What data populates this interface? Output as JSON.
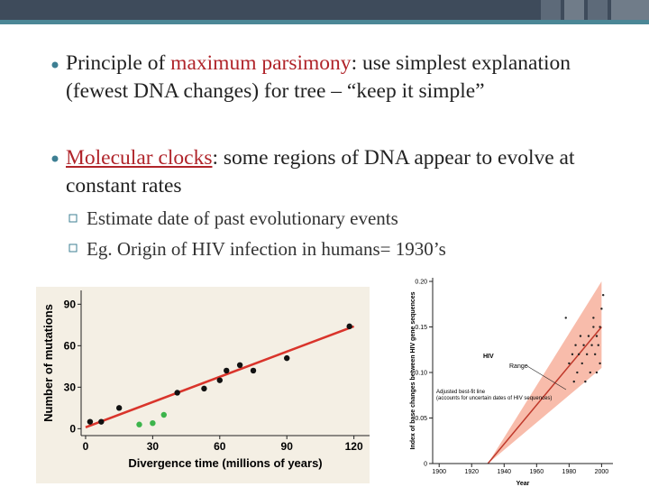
{
  "slide": {
    "bullets": [
      {
        "parts": [
          "Principle of ",
          "maximum parsimony",
          ": use simplest explanation (fewest DNA changes) for tree – “keep it simple”"
        ]
      },
      {
        "parts": [
          "Molecular clocks",
          ": some regions of DNA appear to evolve at constant rates"
        ],
        "sub": [
          "Estimate date of past evolutionary events",
          "Eg. Origin of HIV infection in humans= 1930’s"
        ]
      }
    ]
  },
  "chart_data": [
    {
      "type": "scatter",
      "xlabel": "Divergence time (millions of years)",
      "ylabel": "Number of mutations",
      "xlim": [
        -2,
        127
      ],
      "ylim": [
        -5,
        100
      ],
      "xticks": [
        0,
        30,
        60,
        90,
        120
      ],
      "yticks": [
        0,
        30,
        60,
        90
      ],
      "background": "#f4efe4",
      "series": [
        {
          "type": "line",
          "color": "#d9342b",
          "x": [
            0,
            120
          ],
          "values": [
            1,
            74
          ]
        },
        {
          "type": "scatter",
          "color": "#111111",
          "x": [
            2,
            7,
            15,
            41,
            53,
            60,
            63,
            69,
            75,
            90,
            118
          ],
          "values": [
            5,
            5,
            15,
            26,
            29,
            35,
            42,
            46,
            42,
            51,
            74
          ]
        },
        {
          "type": "scatter",
          "color": "#3cb44b",
          "x": [
            24,
            30,
            35
          ],
          "values": [
            3,
            4,
            10
          ]
        }
      ]
    },
    {
      "type": "scatter",
      "xlabel": "Year",
      "ylabel": "Index of base changes between HIV gene sequences",
      "xlim": [
        1896,
        2007
      ],
      "ylim": [
        0,
        0.204
      ],
      "xticks": [
        1900,
        1920,
        1940,
        1960,
        1980,
        2000
      ],
      "yticks": [
        0,
        0.05,
        {
          "value": 0.1,
          "label": "0.10"
        },
        0.15,
        {
          "value": 0.2,
          "label": "0.20"
        }
      ],
      "background": "#ffffff",
      "annotations": [
        "HIV",
        "Range",
        "Adjusted best-fit line (accounts for uncertain dates of HIV sequences)"
      ],
      "series": [
        {
          "type": "band",
          "color": "#f6a58f",
          "x": [
            1930,
            2000
          ],
          "low": [
            0,
            0.105
          ],
          "high": [
            0,
            0.2
          ]
        },
        {
          "type": "line",
          "color": "#c0392b",
          "x": [
            1930,
            2000
          ],
          "values": [
            0,
            0.15
          ]
        },
        {
          "type": "scatter",
          "color": "#222222",
          "x": [
            1978,
            1980,
            1982,
            1983,
            1984,
            1985,
            1986,
            1987,
            1988,
            1989,
            1990,
            1991,
            1992,
            1993,
            1994,
            1995,
            1996,
            1997,
            1998,
            1999,
            2000,
            1999,
            1997,
            1995,
            2001
          ],
          "values": [
            0.16,
            0.11,
            0.12,
            0.09,
            0.13,
            0.1,
            0.12,
            0.14,
            0.11,
            0.13,
            0.09,
            0.12,
            0.14,
            0.1,
            0.13,
            0.15,
            0.12,
            0.14,
            0.13,
            0.15,
            0.17,
            0.11,
            0.1,
            0.16,
            0.185
          ]
        }
      ]
    }
  ]
}
